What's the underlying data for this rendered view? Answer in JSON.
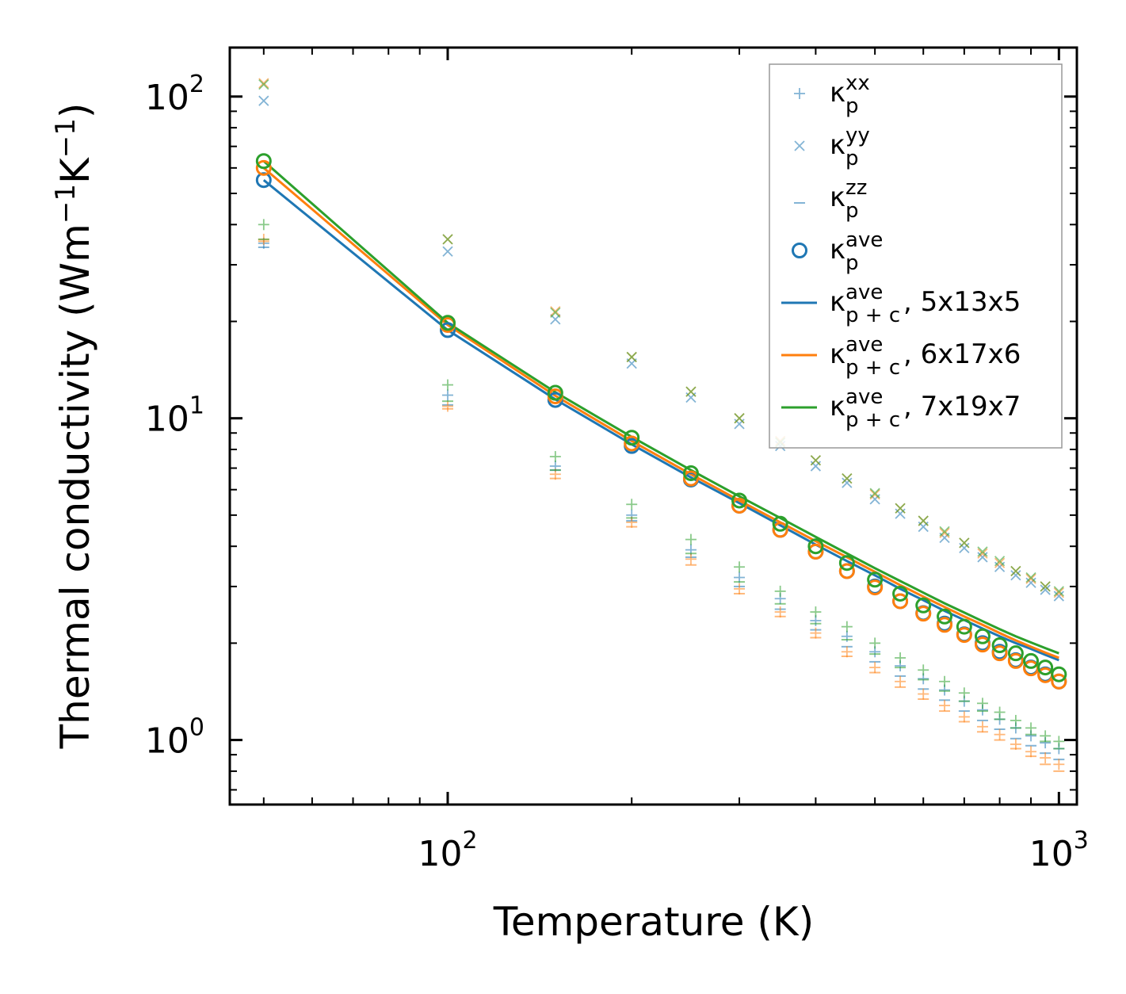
{
  "chart_data": {
    "type": "scatter",
    "xscale": "log",
    "yscale": "log",
    "xlabel": "Temperature (K)",
    "ylabel": "Thermal conductivity (Wm",
    "ylabel_sup1": "−1",
    "ylabel_mid": "K",
    "ylabel_sup2": "−1",
    "ylabel_end": ")",
    "xlim": [
      44,
      1070
    ],
    "ylim": [
      0.63,
      142
    ],
    "x_ticks": [
      {
        "base": "10",
        "exp": "2",
        "value": 100
      },
      {
        "base": "10",
        "exp": "3",
        "value": 1000
      }
    ],
    "y_ticks": [
      {
        "base": "10",
        "exp": "0",
        "value": 1
      },
      {
        "base": "10",
        "exp": "1",
        "value": 10
      },
      {
        "base": "10",
        "exp": "2",
        "value": 100
      }
    ],
    "colors": {
      "blue": "#1f77b4",
      "orange": "#ff7f0e",
      "green": "#2ca02c"
    },
    "temperatures": [
      50,
      100,
      150,
      200,
      250,
      300,
      350,
      400,
      450,
      500,
      550,
      600,
      650,
      700,
      750,
      800,
      850,
      900,
      950,
      1000
    ],
    "series": [
      {
        "name": "5x13x5",
        "color": "#1f77b4",
        "kxx": [
          35,
          11.8,
          7.1,
          5.0,
          3.9,
          3.2,
          2.75,
          2.35,
          2.1,
          1.88,
          1.7,
          1.55,
          1.43,
          1.32,
          1.24,
          1.16,
          1.09,
          1.03,
          0.98,
          0.94
        ],
        "kyy": [
          97,
          33,
          20.3,
          14.8,
          11.6,
          9.6,
          8.2,
          7.1,
          6.3,
          5.6,
          5.05,
          4.6,
          4.25,
          3.95,
          3.7,
          3.45,
          3.25,
          3.08,
          2.93,
          2.8
        ],
        "kzz": [
          34,
          11.0,
          6.9,
          4.8,
          3.7,
          3.0,
          2.55,
          2.2,
          1.95,
          1.75,
          1.58,
          1.44,
          1.33,
          1.23,
          1.15,
          1.08,
          1.01,
          0.96,
          0.91,
          0.87
        ],
        "kave_p": [
          55,
          18.8,
          11.4,
          8.2,
          6.45,
          5.35,
          4.5,
          3.85,
          3.35,
          3.0,
          2.7,
          2.48,
          2.3,
          2.13,
          2.0,
          1.88,
          1.77,
          1.68,
          1.6,
          1.52
        ],
        "kave_pc": [
          55,
          18.8,
          11.45,
          8.3,
          6.55,
          5.45,
          4.65,
          4.05,
          3.6,
          3.25,
          2.95,
          2.72,
          2.52,
          2.36,
          2.22,
          2.1,
          2.0,
          1.92,
          1.84,
          1.77
        ]
      },
      {
        "name": "6x17x6",
        "color": "#ff7f0e",
        "kxx": [
          36,
          10.9,
          6.7,
          4.75,
          3.65,
          2.95,
          2.5,
          2.15,
          1.88,
          1.68,
          1.52,
          1.39,
          1.28,
          1.18,
          1.1,
          1.04,
          0.97,
          0.92,
          0.88,
          0.84
        ],
        "kyy": [
          110,
          36,
          21.5,
          15.5,
          12.1,
          10.0,
          8.5,
          7.4,
          6.5,
          5.8,
          5.25,
          4.8,
          4.4,
          4.1,
          3.8,
          3.55,
          3.35,
          3.17,
          3.0,
          2.87
        ],
        "kzz": [
          35.5,
          10.7,
          6.5,
          4.6,
          3.5,
          2.85,
          2.42,
          2.08,
          1.82,
          1.62,
          1.46,
          1.34,
          1.23,
          1.14,
          1.06,
          1.0,
          0.94,
          0.89,
          0.84,
          0.8
        ],
        "kave_p": [
          60,
          19.5,
          11.7,
          8.35,
          6.5,
          5.35,
          4.5,
          3.85,
          3.35,
          2.98,
          2.7,
          2.47,
          2.28,
          2.12,
          1.98,
          1.86,
          1.76,
          1.67,
          1.59,
          1.52
        ],
        "kave_pc": [
          60,
          19.5,
          11.75,
          8.5,
          6.7,
          5.55,
          4.75,
          4.15,
          3.7,
          3.33,
          3.03,
          2.79,
          2.59,
          2.42,
          2.28,
          2.15,
          2.04,
          1.95,
          1.87,
          1.8
        ]
      },
      {
        "name": "7x19x7",
        "color": "#2ca02c",
        "kxx": [
          40,
          12.7,
          7.6,
          5.4,
          4.2,
          3.45,
          2.9,
          2.5,
          2.25,
          2.0,
          1.8,
          1.65,
          1.52,
          1.4,
          1.3,
          1.22,
          1.15,
          1.09,
          1.03,
          0.99
        ],
        "kyy": [
          109,
          36,
          21.3,
          15.5,
          12.1,
          10.0,
          8.4,
          7.4,
          6.5,
          5.85,
          5.25,
          4.8,
          4.45,
          4.1,
          3.85,
          3.6,
          3.35,
          3.2,
          3.0,
          2.9
        ],
        "kzz": [
          36,
          11.3,
          6.9,
          4.9,
          3.8,
          3.1,
          2.65,
          2.3,
          2.05,
          1.85,
          1.68,
          1.54,
          1.42,
          1.32,
          1.23,
          1.16,
          1.09,
          1.04,
          0.99,
          0.94
        ],
        "kave_p": [
          63,
          19.8,
          12.0,
          8.7,
          6.75,
          5.55,
          4.7,
          4.0,
          3.55,
          3.15,
          2.85,
          2.62,
          2.42,
          2.25,
          2.1,
          1.97,
          1.86,
          1.76,
          1.68,
          1.6
        ],
        "kave_pc": [
          63,
          19.8,
          12.05,
          8.75,
          6.9,
          5.72,
          4.9,
          4.28,
          3.8,
          3.42,
          3.12,
          2.87,
          2.66,
          2.49,
          2.34,
          2.21,
          2.1,
          2.01,
          1.93,
          1.86
        ]
      }
    ],
    "legend": {
      "placement": "top-right",
      "entries": [
        {
          "marker": "plus",
          "color": "#1f77b4",
          "sym": "κ",
          "sub": "p",
          "sup": "xx",
          "suffix": ""
        },
        {
          "marker": "x",
          "color": "#1f77b4",
          "sym": "κ",
          "sub": "p",
          "sup": "yy",
          "suffix": ""
        },
        {
          "marker": "dash",
          "color": "#1f77b4",
          "sym": "κ",
          "sub": "p",
          "sup": "zz",
          "suffix": ""
        },
        {
          "marker": "circle",
          "color": "#1f77b4",
          "sym": "κ",
          "sub": "p",
          "sup": "ave",
          "suffix": ""
        },
        {
          "marker": "line",
          "color": "#1f77b4",
          "sym": "κ",
          "sub": "p + c",
          "sup": "ave",
          "suffix": ", 5x13x5"
        },
        {
          "marker": "line",
          "color": "#ff7f0e",
          "sym": "κ",
          "sub": "p + c",
          "sup": "ave",
          "suffix": ", 6x17x6"
        },
        {
          "marker": "line",
          "color": "#2ca02c",
          "sym": "κ",
          "sub": "p + c",
          "sup": "ave",
          "suffix": ", 7x19x7"
        }
      ]
    }
  }
}
